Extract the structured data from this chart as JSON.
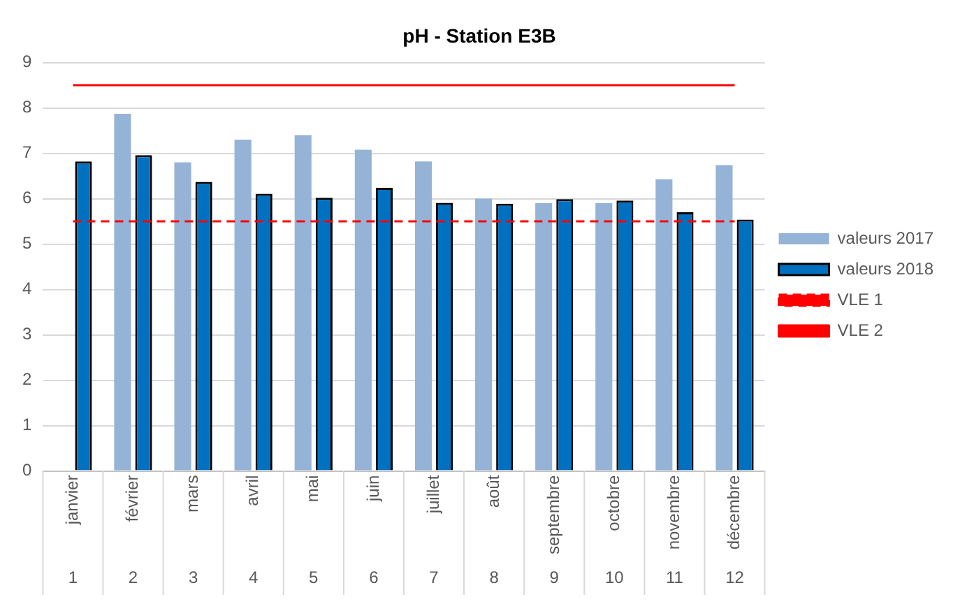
{
  "chart_data": {
    "type": "bar",
    "title": "pH - Station E3B",
    "categories": [
      "janvier",
      "février",
      "mars",
      "avril",
      "mai",
      "juin",
      "juillet",
      "août",
      "septembre",
      "octobre",
      "novembre",
      "décembre"
    ],
    "series": [
      {
        "name": "valeurs 2017",
        "color": "#95b3d7",
        "values": [
          null,
          7.87,
          6.8,
          7.3,
          7.4,
          7.08,
          6.82,
          6.0,
          5.9,
          5.9,
          6.43,
          6.74
        ]
      },
      {
        "name": "valeurs 2018",
        "color": "#0070c0",
        "values": [
          6.82,
          6.96,
          6.37,
          6.11,
          6.02,
          6.24,
          5.91,
          5.89,
          5.99,
          5.96,
          5.7,
          5.54
        ]
      },
      {
        "name": "VLE 1",
        "type": "line",
        "color": "#ff0000",
        "line_style": "dashed",
        "values": [
          5.5,
          5.5,
          5.5,
          5.5,
          5.5,
          5.5,
          5.5,
          5.5,
          5.5,
          5.5,
          5.5,
          5.5
        ]
      },
      {
        "name": "VLE 2",
        "type": "line",
        "color": "#ff0000",
        "line_style": "solid",
        "values": [
          8.5,
          8.5,
          8.5,
          8.5,
          8.5,
          8.5,
          8.5,
          8.5,
          8.5,
          8.5,
          8.5,
          8.5
        ]
      }
    ],
    "ylim": [
      0,
      9
    ],
    "yticks": [
      0,
      1,
      2,
      3,
      4,
      5,
      6,
      7,
      8,
      9
    ],
    "grid": "y",
    "legend": "right",
    "marker": "none",
    "annotations": [
      "1",
      "2",
      "3",
      "4",
      "5",
      "6",
      "7",
      "8",
      "9",
      "10",
      "11",
      "12"
    ]
  }
}
